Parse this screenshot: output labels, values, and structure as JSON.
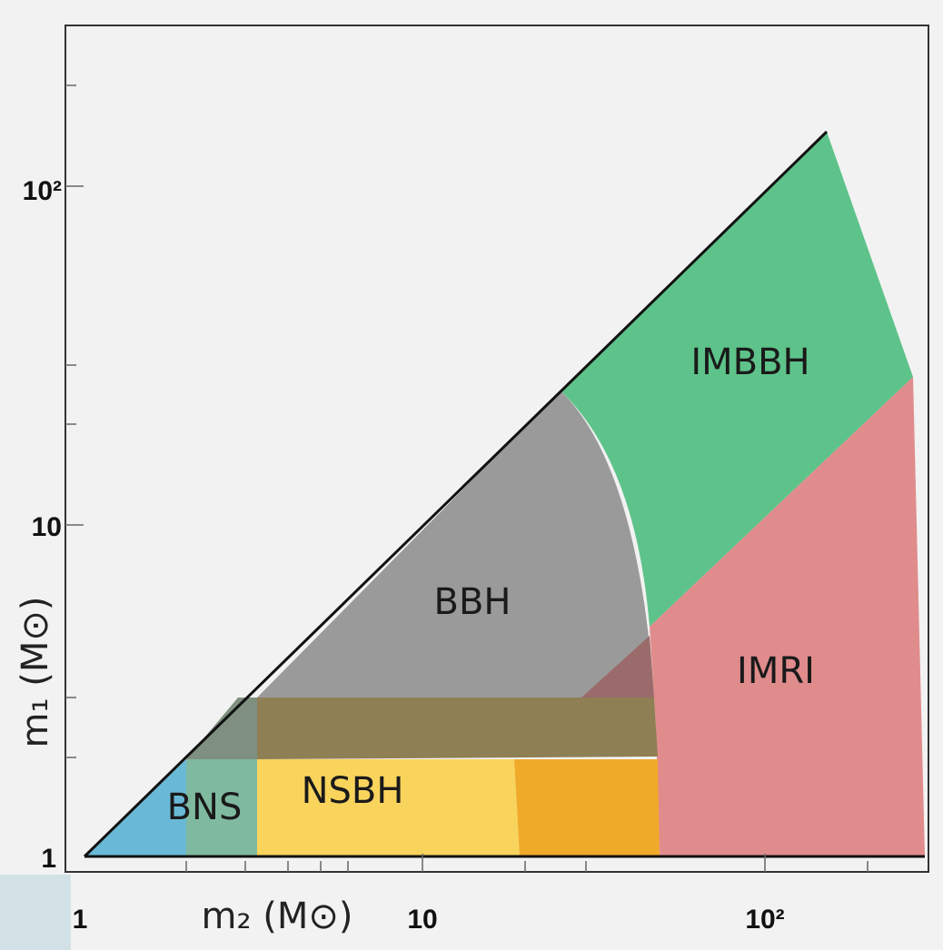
{
  "axes": {
    "x_label": "m₂ (M⊙)",
    "y_label": "m₁ (M⊙)",
    "x_ticks": [
      "1",
      "10",
      "10²"
    ],
    "y_ticks": [
      "1",
      "10",
      "10²"
    ]
  },
  "regions": [
    {
      "label": "IMBBH"
    },
    {
      "label": "BBH"
    },
    {
      "label": "IMRI"
    },
    {
      "label": "NSBH"
    },
    {
      "label": "BNS"
    }
  ]
}
